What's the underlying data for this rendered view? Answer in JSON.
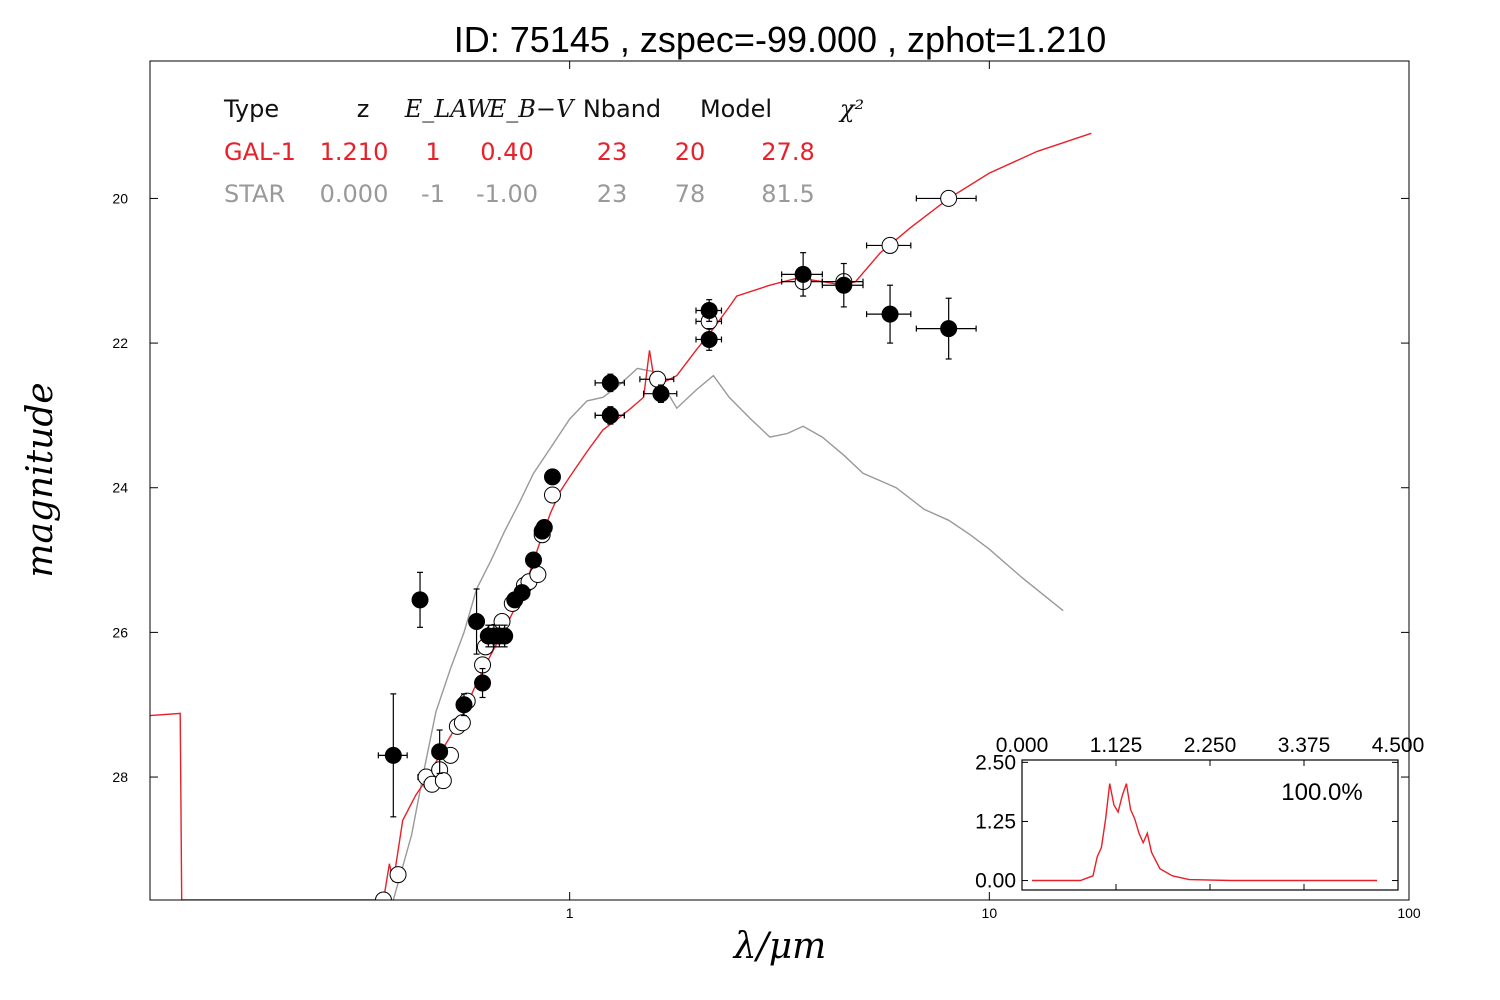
{
  "chart_data": {
    "type": "scatter",
    "title": "ID:  75145 , zspec=-99.000 , zphot=1.210",
    "xlabel": "λ/μm",
    "ylabel": "magnitude",
    "x_scale": "log",
    "xlim": [
      0.1,
      100
    ],
    "ylim": [
      29.7,
      18.1
    ],
    "x_ticks": [
      {
        "value": 1,
        "label": "1"
      },
      {
        "value": 10,
        "label": "10"
      },
      {
        "value": 100,
        "label": "100"
      }
    ],
    "y_ticks": [
      {
        "value": 20,
        "label": "20"
      },
      {
        "value": 22,
        "label": "22"
      },
      {
        "value": 24,
        "label": "24"
      },
      {
        "value": 26,
        "label": "26"
      },
      {
        "value": 28,
        "label": "28"
      }
    ],
    "colors": {
      "galaxy": "#e8202a",
      "star": "#999999",
      "axis": "#000000"
    },
    "fit_table": {
      "headers": [
        "Type",
        "z",
        "E_LAW",
        "E_B−V",
        "Nband",
        "Model",
        "χ²"
      ],
      "rows": [
        {
          "color": "#e8202a",
          "cells": [
            "GAL-1",
            "1.210",
            "1",
            "0.40",
            "23",
            "20",
            "27.8"
          ]
        },
        {
          "color": "#999999",
          "cells": [
            "STAR",
            "0.000",
            "-1",
            "-1.00",
            "23",
            "78",
            "81.5"
          ]
        }
      ]
    },
    "series": [
      {
        "kind": "model-line",
        "color": "#e8202a",
        "points": [
          [
            0.1,
            27.15
          ],
          [
            0.118,
            27.12
          ],
          [
            0.119,
            29.7
          ],
          [
            0.36,
            29.7
          ],
          [
            0.372,
            29.2
          ],
          [
            0.38,
            29.45
          ],
          [
            0.4,
            28.6
          ],
          [
            0.43,
            28.25
          ],
          [
            0.46,
            28.0
          ],
          [
            0.5,
            27.6
          ],
          [
            0.55,
            27.2
          ],
          [
            0.6,
            26.7
          ],
          [
            0.65,
            26.3
          ],
          [
            0.7,
            25.95
          ],
          [
            0.75,
            25.6
          ],
          [
            0.8,
            25.2
          ],
          [
            0.85,
            24.75
          ],
          [
            0.9,
            24.35
          ],
          [
            0.95,
            24.05
          ],
          [
            1.0,
            23.85
          ],
          [
            1.1,
            23.5
          ],
          [
            1.2,
            23.2
          ],
          [
            1.3,
            23.05
          ],
          [
            1.4,
            22.9
          ],
          [
            1.5,
            22.75
          ],
          [
            1.55,
            22.1
          ],
          [
            1.6,
            22.6
          ],
          [
            1.8,
            22.45
          ],
          [
            2.0,
            22.1
          ],
          [
            2.2,
            21.8
          ],
          [
            2.4,
            21.5
          ],
          [
            2.5,
            21.35
          ],
          [
            3.0,
            21.2
          ],
          [
            3.5,
            21.1
          ],
          [
            4.0,
            21.15
          ],
          [
            4.5,
            21.2
          ],
          [
            4.8,
            21.15
          ],
          [
            5.5,
            20.75
          ],
          [
            6.5,
            20.4
          ],
          [
            8.0,
            20.0
          ],
          [
            10.0,
            19.65
          ],
          [
            13.0,
            19.35
          ],
          [
            17.5,
            19.1
          ]
        ]
      },
      {
        "kind": "model-line",
        "color": "#999999",
        "points": [
          [
            0.38,
            29.7
          ],
          [
            0.42,
            28.8
          ],
          [
            0.45,
            27.9
          ],
          [
            0.48,
            27.1
          ],
          [
            0.52,
            26.5
          ],
          [
            0.56,
            26.0
          ],
          [
            0.6,
            25.4
          ],
          [
            0.65,
            25.0
          ],
          [
            0.7,
            24.6
          ],
          [
            0.76,
            24.2
          ],
          [
            0.82,
            23.8
          ],
          [
            0.9,
            23.45
          ],
          [
            1.0,
            23.05
          ],
          [
            1.1,
            22.8
          ],
          [
            1.2,
            22.75
          ],
          [
            1.3,
            22.6
          ],
          [
            1.45,
            22.35
          ],
          [
            1.6,
            22.4
          ],
          [
            1.8,
            22.9
          ],
          [
            2.0,
            22.65
          ],
          [
            2.2,
            22.45
          ],
          [
            2.4,
            22.75
          ],
          [
            2.7,
            23.05
          ],
          [
            3.0,
            23.3
          ],
          [
            3.3,
            23.25
          ],
          [
            3.6,
            23.15
          ],
          [
            4.0,
            23.3
          ],
          [
            4.5,
            23.55
          ],
          [
            5.0,
            23.8
          ],
          [
            6.0,
            24.0
          ],
          [
            7.0,
            24.3
          ],
          [
            8.0,
            24.45
          ],
          [
            9.0,
            24.65
          ],
          [
            10.0,
            24.85
          ],
          [
            12.0,
            25.25
          ],
          [
            15.0,
            25.7
          ]
        ]
      },
      {
        "kind": "observed",
        "marker": "filled",
        "points": [
          {
            "x": 0.38,
            "y": 27.7,
            "xerr": 0.03,
            "yerr": 0.85
          },
          {
            "x": 0.44,
            "y": 25.55,
            "xerr": 0.015,
            "yerr": 0.38
          },
          {
            "x": 0.49,
            "y": 27.65,
            "xerr": 0.02,
            "yerr": 0.3
          },
          {
            "x": 0.56,
            "y": 27.0,
            "xerr": 0.01,
            "yerr": 0.15
          },
          {
            "x": 0.6,
            "y": 25.85,
            "xerr": 0.012,
            "yerr": 0.45
          },
          {
            "x": 0.62,
            "y": 26.7,
            "xerr": 0.01,
            "yerr": 0.2
          },
          {
            "x": 0.64,
            "y": 26.05,
            "xerr": 0.02,
            "yerr": 0.15
          },
          {
            "x": 0.66,
            "y": 26.05,
            "xerr": 0.02,
            "yerr": 0.15
          },
          {
            "x": 0.68,
            "y": 26.05,
            "xerr": 0.02,
            "yerr": 0.15
          },
          {
            "x": 0.7,
            "y": 26.05,
            "xerr": 0.02,
            "yerr": 0.15
          },
          {
            "x": 0.74,
            "y": 25.55,
            "xerr": 0.02,
            "yerr": 0.1
          },
          {
            "x": 0.77,
            "y": 25.45,
            "xerr": 0.02,
            "yerr": 0.1
          },
          {
            "x": 0.82,
            "y": 25.0,
            "xerr": 0.02,
            "yerr": 0.1
          },
          {
            "x": 0.86,
            "y": 24.6,
            "xerr": 0.02,
            "yerr": 0.1
          },
          {
            "x": 0.87,
            "y": 24.55,
            "xerr": 0.03,
            "yerr": 0.1
          },
          {
            "x": 0.91,
            "y": 23.85,
            "xerr": 0.02,
            "yerr": 0.1
          },
          {
            "x": 1.25,
            "y": 22.55,
            "xerr": 0.1,
            "yerr": 0.12
          },
          {
            "x": 1.25,
            "y": 23.0,
            "xerr": 0.1,
            "yerr": 0.12
          },
          {
            "x": 1.65,
            "y": 22.7,
            "xerr": 0.15,
            "yerr": 0.12
          },
          {
            "x": 2.15,
            "y": 21.55,
            "xerr": 0.15,
            "yerr": 0.15
          },
          {
            "x": 2.15,
            "y": 21.95,
            "xerr": 0.15,
            "yerr": 0.15
          },
          {
            "x": 3.6,
            "y": 21.05,
            "xerr": 0.4,
            "yerr": 0.3
          },
          {
            "x": 4.5,
            "y": 21.2,
            "xerr": 0.5,
            "yerr": 0.3
          },
          {
            "x": 5.8,
            "y": 21.6,
            "xerr": 0.7,
            "yerr": 0.4
          },
          {
            "x": 8.0,
            "y": 21.8,
            "xerr": 1.3,
            "yerr": 0.42
          }
        ]
      },
      {
        "kind": "model-mag",
        "marker": "open",
        "points": [
          {
            "x": 0.36,
            "y": 29.7,
            "xerr": 0.01
          },
          {
            "x": 0.39,
            "y": 29.35,
            "xerr": 0.01
          },
          {
            "x": 0.455,
            "y": 28.0,
            "xerr": 0.02
          },
          {
            "x": 0.47,
            "y": 28.1,
            "xerr": 0.02
          },
          {
            "x": 0.49,
            "y": 27.9,
            "xerr": 0.02
          },
          {
            "x": 0.5,
            "y": 28.05,
            "xerr": 0.02
          },
          {
            "x": 0.52,
            "y": 27.7,
            "xerr": 0.02
          },
          {
            "x": 0.54,
            "y": 27.3,
            "xerr": 0.02
          },
          {
            "x": 0.555,
            "y": 27.25,
            "xerr": 0.02
          },
          {
            "x": 0.57,
            "y": 26.95,
            "xerr": 0.02
          },
          {
            "x": 0.62,
            "y": 26.45,
            "xerr": 0.02
          },
          {
            "x": 0.63,
            "y": 26.2,
            "xerr": 0.02
          },
          {
            "x": 0.66,
            "y": 26.0,
            "xerr": 0.02
          },
          {
            "x": 0.69,
            "y": 25.85,
            "xerr": 0.02
          },
          {
            "x": 0.73,
            "y": 25.6,
            "xerr": 0.02
          },
          {
            "x": 0.78,
            "y": 25.35,
            "xerr": 0.02
          },
          {
            "x": 0.8,
            "y": 25.3,
            "xerr": 0.02
          },
          {
            "x": 0.84,
            "y": 25.2,
            "xerr": 0.02
          },
          {
            "x": 0.86,
            "y": 24.65,
            "xerr": 0.03
          },
          {
            "x": 0.91,
            "y": 24.1,
            "xerr": 0.02
          },
          {
            "x": 1.25,
            "y": 23.0,
            "xerr": 0.1
          },
          {
            "x": 1.62,
            "y": 22.5,
            "xerr": 0.15
          },
          {
            "x": 2.15,
            "y": 21.7,
            "xerr": 0.15
          },
          {
            "x": 3.6,
            "y": 21.15,
            "xerr": 0.4
          },
          {
            "x": 4.5,
            "y": 21.15,
            "xerr": 0.5
          },
          {
            "x": 5.8,
            "y": 20.65,
            "xerr": 0.7
          },
          {
            "x": 8.0,
            "y": 20.0,
            "xerr": 1.3
          }
        ]
      }
    ],
    "inset": {
      "type": "line",
      "label": "100.0%",
      "xlim": [
        0,
        4.5
      ],
      "ylim": [
        -0.2,
        2.55
      ],
      "x_ticks": [
        "0.000",
        "1.125",
        "2.250",
        "3.375",
        "4.500"
      ],
      "y_ticks": [
        "0.00",
        "1.25",
        "2.50"
      ],
      "x_tick_values": [
        0,
        1.125,
        2.25,
        3.375,
        4.5
      ],
      "y_tick_values": [
        0,
        1.25,
        2.5
      ],
      "color": "#e8202a",
      "points": [
        [
          0.12,
          0
        ],
        [
          0.7,
          0.0
        ],
        [
          0.85,
          0.1
        ],
        [
          0.9,
          0.5
        ],
        [
          0.95,
          0.7
        ],
        [
          1.0,
          1.3
        ],
        [
          1.05,
          2.05
        ],
        [
          1.1,
          1.6
        ],
        [
          1.15,
          1.45
        ],
        [
          1.2,
          1.8
        ],
        [
          1.25,
          2.05
        ],
        [
          1.3,
          1.5
        ],
        [
          1.35,
          1.3
        ],
        [
          1.4,
          1.0
        ],
        [
          1.45,
          0.8
        ],
        [
          1.5,
          1.0
        ],
        [
          1.55,
          0.6
        ],
        [
          1.65,
          0.25
        ],
        [
          1.8,
          0.1
        ],
        [
          2.0,
          0.02
        ],
        [
          2.5,
          0
        ],
        [
          4.25,
          0
        ]
      ]
    }
  }
}
